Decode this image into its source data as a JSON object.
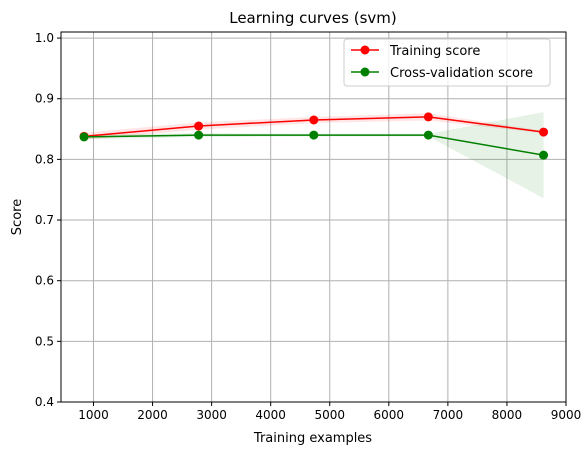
{
  "chart_data": {
    "type": "line",
    "title": "Learning curves (svm)",
    "xlabel": "Training examples",
    "ylabel": "Score",
    "xlim": [
      450,
      9000
    ],
    "ylim": [
      0.4,
      1.01
    ],
    "x_ticks": [
      1000,
      2000,
      3000,
      4000,
      5000,
      6000,
      7000,
      8000,
      9000
    ],
    "x_tick_labels": [
      "1000",
      "2000",
      "3000",
      "4000",
      "5000",
      "6000",
      "7000",
      "8000",
      "9000"
    ],
    "y_ticks": [
      0.4,
      0.5,
      0.6,
      0.7,
      0.8,
      0.9,
      1.0
    ],
    "y_tick_labels": [
      "0.4",
      "0.5",
      "0.6",
      "0.7",
      "0.8",
      "0.9",
      "1.0"
    ],
    "grid": true,
    "legend_position": "top-right",
    "x": [
      840,
      2780,
      4730,
      6670,
      8620
    ],
    "series": [
      {
        "name": "Training score",
        "color": "#ff0000",
        "values": [
          0.838,
          0.855,
          0.865,
          0.87,
          0.845
        ],
        "band_lower": [
          0.832,
          0.849,
          0.86,
          0.864,
          0.843
        ],
        "band_upper": [
          0.844,
          0.861,
          0.87,
          0.876,
          0.847
        ]
      },
      {
        "name": "Cross-validation score",
        "color": "#008000",
        "values": [
          0.837,
          0.84,
          0.84,
          0.84,
          0.807
        ],
        "band_lower": [
          0.833,
          0.837,
          0.838,
          0.838,
          0.736
        ],
        "band_upper": [
          0.841,
          0.843,
          0.842,
          0.842,
          0.878
        ]
      }
    ]
  }
}
